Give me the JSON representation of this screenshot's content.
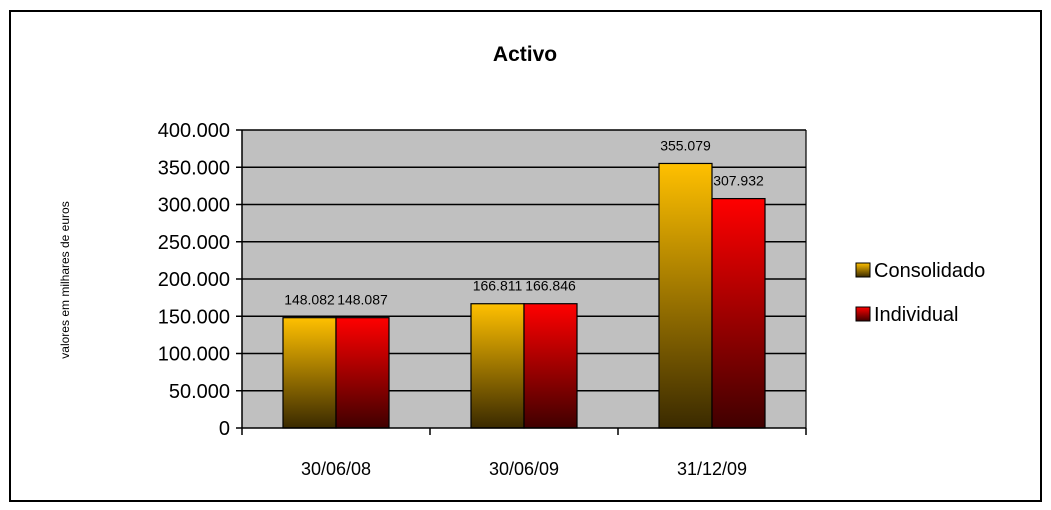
{
  "chart_data": {
    "type": "bar",
    "title": "Activo",
    "xlabel": "",
    "ylabel": "valores em milhares  de euros",
    "categories": [
      "30/06/08",
      "30/06/09",
      "31/12/09"
    ],
    "series": [
      {
        "name": "Consolidado",
        "values": [
          148082,
          166811,
          355079
        ],
        "labels": [
          "148.082",
          "166.811",
          "355.079"
        ],
        "color_top": "#FFC000",
        "color_bottom": "#3A2A00"
      },
      {
        "name": "Individual",
        "values": [
          148087,
          166846,
          307932
        ],
        "labels": [
          "148.087",
          "166.846",
          "307.932"
        ],
        "color_top": "#FF0000",
        "color_bottom": "#400000"
      }
    ],
    "ylim": [
      0,
      400000
    ],
    "yticks": [
      0,
      50000,
      100000,
      150000,
      200000,
      250000,
      300000,
      350000,
      400000
    ],
    "ytick_labels": [
      "0",
      "50.000",
      "100.000",
      "150.000",
      "200.000",
      "250.000",
      "300.000",
      "350.000",
      "400.000"
    ],
    "grid": true,
    "legend_position": "right",
    "plot_background": "#C0C0C0"
  }
}
